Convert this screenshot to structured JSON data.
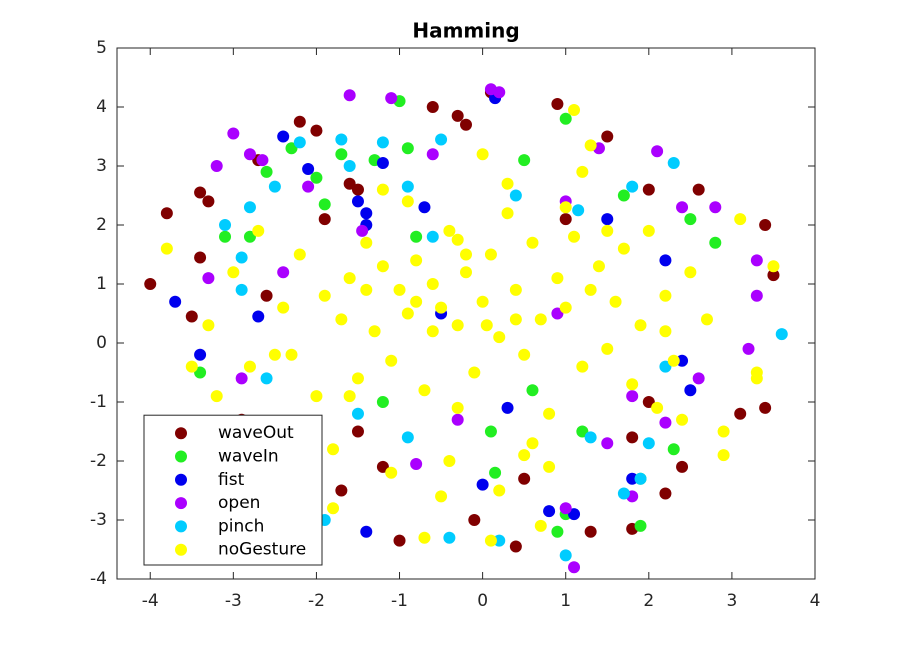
{
  "chart_data": {
    "type": "scatter",
    "title": "Hamming",
    "xlim": [
      -4.4,
      4
    ],
    "ylim": [
      -4,
      5
    ],
    "xticks": [
      -4,
      -3,
      -2,
      -1,
      0,
      1,
      2,
      3,
      4
    ],
    "yticks": [
      -4,
      -3,
      -2,
      -1,
      0,
      1,
      2,
      3,
      4,
      5
    ],
    "grid": false,
    "legend": "southwest",
    "series": [
      {
        "name": "waveOut",
        "color": "#800000",
        "x": [
          -4,
          -3.8,
          -3.4,
          -3.3,
          -3.4,
          -3.5,
          -2.7,
          -2.6,
          -2.2,
          -2,
          -1.9,
          -1.6,
          -1.5,
          -1.5,
          -1.7,
          -0.6,
          -0.3,
          -0.2,
          0.1,
          0.9,
          1.5,
          1,
          2,
          2.6,
          3.4,
          3.1,
          3.4,
          2.4,
          2.2,
          1.8,
          1.3,
          0.4,
          -1,
          -0.1,
          0.5,
          1.8,
          2,
          -1.2,
          -2.9,
          3.5
        ],
        "y": [
          1,
          2.2,
          2.55,
          2.4,
          1.45,
          0.45,
          3.1,
          0.8,
          3.75,
          3.6,
          2.1,
          2.7,
          2.6,
          -1.5,
          -2.5,
          4,
          3.85,
          3.7,
          4.25,
          4.05,
          3.5,
          2.1,
          2.6,
          2.6,
          2,
          -1.2,
          -1.1,
          -2.1,
          -2.55,
          -3.15,
          -3.2,
          -3.45,
          -3.35,
          -3,
          -2.3,
          -1.6,
          -1,
          -2.1,
          -1.3,
          1.15
        ]
      },
      {
        "name": "waveIn",
        "color": "#22ee22",
        "x": [
          -3.1,
          -2.8,
          -2.3,
          -2,
          -1.9,
          -1.7,
          -1.3,
          -1,
          -0.9,
          -0.8,
          -2.6,
          -1.2,
          0.5,
          1,
          1.7,
          2.5,
          1.2,
          1.9,
          1,
          0.9,
          1.9,
          0.1,
          2.3,
          -3.4,
          2.8,
          0.15,
          0.6,
          -2
        ],
        "y": [
          1.8,
          1.8,
          3.3,
          2.8,
          2.35,
          3.2,
          3.1,
          4.1,
          3.3,
          1.8,
          2.9,
          -1,
          3.1,
          3.8,
          2.5,
          2.1,
          -1.5,
          -2.3,
          -2.9,
          -3.2,
          -3.1,
          -1.5,
          -1.8,
          -0.5,
          1.7,
          -2.2,
          -0.8,
          -1.7
        ]
      },
      {
        "name": "fist",
        "color": "#0000ee",
        "x": [
          -3.7,
          -3.4,
          -2.7,
          -2.4,
          -2.1,
          -1.4,
          -1.4,
          -1.5,
          -1.2,
          0.15,
          -0.7,
          1.5,
          2.2,
          2.4,
          2.5,
          1.8,
          1.1,
          0.8,
          -1.4,
          0,
          0.3,
          -0.5
        ],
        "y": [
          0.7,
          -0.2,
          0.45,
          3.5,
          2.95,
          2,
          2.2,
          2.4,
          3.05,
          4.15,
          2.3,
          2.1,
          1.4,
          -0.3,
          -0.8,
          -2.3,
          -2.9,
          -2.85,
          -3.2,
          -2.4,
          -1.1,
          0.5
        ]
      },
      {
        "name": "open",
        "color": "#aa00ff",
        "x": [
          -3.2,
          -3,
          -2.8,
          -2.65,
          -2.1,
          -1.6,
          -1.1,
          -1.45,
          -0.6,
          0.1,
          0.2,
          1,
          1.4,
          2.1,
          2.4,
          2.8,
          3.3,
          3.3,
          3.2,
          2.6,
          2.2,
          1.8,
          1.5,
          1.8,
          1,
          -0.8,
          -2.9,
          -3.3,
          -0.3,
          1.1,
          -2.4,
          0.9
        ],
        "y": [
          3,
          3.55,
          3.2,
          3.1,
          2.65,
          4.2,
          4.15,
          1.9,
          3.2,
          4.3,
          4.25,
          2.4,
          3.3,
          3.25,
          2.3,
          2.3,
          1.4,
          0.8,
          -0.1,
          -0.6,
          -1.35,
          -0.9,
          -1.7,
          -2.6,
          -2.8,
          -2.05,
          -0.6,
          1.1,
          -1.3,
          -3.8,
          1.2,
          0.5
        ]
      },
      {
        "name": "pinch",
        "color": "#00ccff",
        "x": [
          -3.1,
          -2.8,
          -2.9,
          -2.9,
          -2.5,
          -2.2,
          -1.7,
          -1.6,
          -1.2,
          -0.9,
          -0.5,
          -0.6,
          0.4,
          1.15,
          1.8,
          2.3,
          3.6,
          2.2,
          1.9,
          1.7,
          1,
          0.2,
          -0.4,
          -1.9,
          -2.6,
          -1.5,
          2,
          1.3,
          -0.9
        ],
        "y": [
          2,
          2.3,
          1.45,
          0.9,
          2.65,
          3.4,
          3.45,
          3,
          3.4,
          2.65,
          3.45,
          1.8,
          2.5,
          2.25,
          2.65,
          3.05,
          0.15,
          -0.4,
          -2.3,
          -2.55,
          -3.6,
          -3.35,
          -3.3,
          -3,
          -0.6,
          -1.2,
          -1.7,
          -1.6,
          -1.6
        ]
      },
      {
        "name": "noGesture",
        "color": "#ffff00",
        "x": [
          -3.8,
          -3.3,
          -3.2,
          -3,
          -2.8,
          -2.7,
          -2.5,
          -2.4,
          -2.2,
          -2,
          -1.9,
          -1.8,
          -1.7,
          -1.6,
          -1.5,
          -1.4,
          -1.3,
          -1.2,
          -1.1,
          -1,
          -0.9,
          -0.8,
          -0.7,
          -0.6,
          -0.5,
          -0.4,
          -0.3,
          -0.2,
          -0.1,
          0,
          0.1,
          0.2,
          0.3,
          0.4,
          0.5,
          0.6,
          0.7,
          0.8,
          0.9,
          1,
          1.1,
          1.2,
          1.3,
          1.4,
          1.5,
          1.6,
          1.7,
          1.8,
          1.9,
          2,
          2.1,
          2.2,
          2.3,
          2.5,
          2.7,
          2.9,
          3.1,
          3.3,
          3.5,
          -0.9,
          -0.6,
          -0.3,
          0,
          0.3,
          0.6,
          -1.1,
          -0.5,
          0.2,
          0.8,
          1.2,
          -0.8,
          -0.2,
          0.4,
          1,
          -1.4,
          -0.4,
          0.5,
          1.5,
          -2.3,
          -1.8,
          2.4,
          2.9,
          -0.7,
          0.1,
          0.7,
          -1.2,
          1.1,
          -3.5,
          3.3,
          1.3,
          -0.3,
          0.05,
          -1.6,
          2.2
        ],
        "y": [
          1.6,
          0.3,
          -0.9,
          1.2,
          -0.4,
          1.9,
          -0.2,
          0.6,
          1.5,
          -0.9,
          0.8,
          -1.8,
          0.4,
          1.1,
          -0.6,
          1.7,
          0.2,
          1.3,
          -0.3,
          0.9,
          0.5,
          1.4,
          -0.8,
          1,
          0.6,
          1.9,
          0.3,
          1.2,
          -0.5,
          0.7,
          1.5,
          0.1,
          2.2,
          0.9,
          -0.2,
          1.7,
          0.4,
          -1.2,
          1.1,
          0.6,
          1.8,
          -0.4,
          0.9,
          1.3,
          -0.1,
          0.7,
          1.6,
          -0.7,
          0.3,
          1.9,
          -1.1,
          0.8,
          -0.3,
          1.2,
          0.4,
          -1.5,
          2.1,
          -0.5,
          1.3,
          2.4,
          0.2,
          -1.1,
          3.2,
          2.7,
          -1.7,
          -2.2,
          -2.6,
          -2.5,
          -2.1,
          2.9,
          0.7,
          1.5,
          0.4,
          2.3,
          0.9,
          -2,
          -1.9,
          1.9,
          -0.2,
          -2.8,
          -1.3,
          -1.9,
          -3.3,
          -3.35,
          -3.1,
          2.6,
          3.95,
          -0.4,
          -0.6,
          3.35,
          1.75,
          0.3,
          -0.9,
          0.2
        ]
      }
    ]
  }
}
